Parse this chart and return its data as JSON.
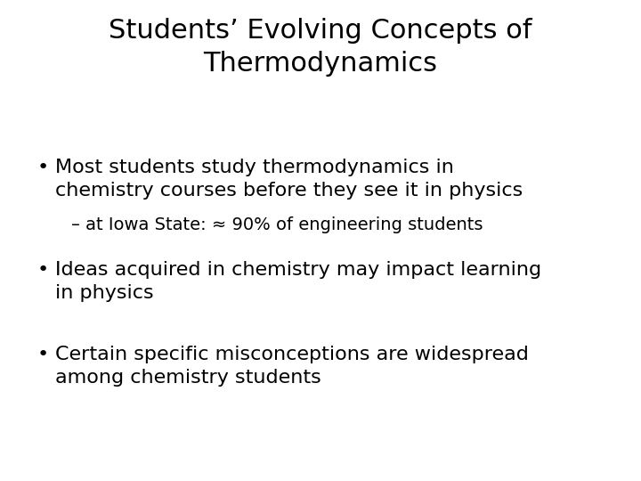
{
  "title_line1": "Students’ Evolving Concepts of",
  "title_line2": "Thermodynamics",
  "background_color": "#ffffff",
  "text_color": "#000000",
  "title_fontsize": 22,
  "body_fontsize": 16,
  "sub_fontsize": 14,
  "bullet1_line1": "Most students study thermodynamics in",
  "bullet1_line2": "chemistry courses before they see it in physics",
  "sub1": "– at Iowa State: ≈ 90% of engineering students",
  "bullet2_line1": "Ideas acquired in chemistry may impact learning",
  "bullet2_line2": "in physics",
  "bullet3_line1": "Certain specific misconceptions are widespread",
  "bullet3_line2": "among chemistry students",
  "bullet_char": "•",
  "font_family": "DejaVu Sans"
}
